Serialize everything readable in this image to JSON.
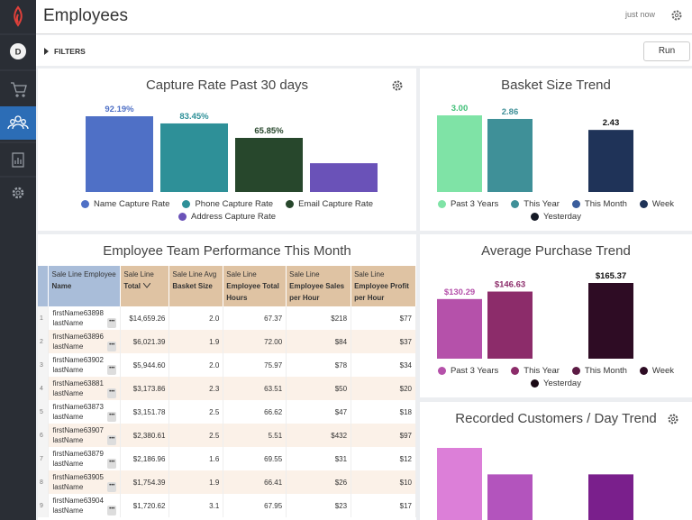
{
  "header": {
    "title": "Employees",
    "status": "just now"
  },
  "sidebar": {
    "avatar": "D"
  },
  "filters": {
    "label": "FILTERS",
    "button": "Run"
  },
  "charts": [
    {
      "type": "bar",
      "title": "Capture Rate Past 30 days",
      "gear": true,
      "categories": [
        "Name Capture Rate",
        "Phone Capture Rate",
        "Email Capture Rate",
        "Address Capture Rate"
      ],
      "values": [
        92.19,
        83.45,
        65.85,
        35
      ],
      "value_labels": [
        "92.19%",
        "83.45%",
        "65.85%",
        null
      ],
      "colors": [
        "#4f70c6",
        "#2e9098",
        "#27472c",
        "#6a52b8"
      ]
    },
    {
      "type": "bar",
      "title": "Basket Size Trend",
      "gear": false,
      "categories": [
        "Past 3 Years",
        "This Year",
        "This Month",
        "Week",
        "Yesterday"
      ],
      "values": [
        3.0,
        2.86,
        null,
        2.43,
        null
      ],
      "value_labels": [
        "3.00",
        "2.86",
        null,
        "2.43",
        null
      ],
      "colors": [
        "#7fe3a6",
        "#3f9098",
        "#3a5d9c",
        "#1f3358",
        "#151a26"
      ]
    },
    {
      "type": "bar",
      "title": "Average Purchase Trend",
      "gear": false,
      "categories": [
        "Past 3 Years",
        "This Year",
        "This Month",
        "Week",
        "Yesterday"
      ],
      "values": [
        130.29,
        146.63,
        null,
        165.37,
        null
      ],
      "value_labels": [
        "$130.29",
        "$146.63",
        null,
        "$165.37",
        null
      ],
      "colors": [
        "#b551aa",
        "#8c2c6a",
        "#5c1b44",
        "#2e0c24",
        "#1a0914"
      ]
    },
    {
      "type": "bar",
      "title": "Recorded Customers / Day Trend",
      "gear": true,
      "values": [
        38,
        26,
        null,
        26,
        null
      ],
      "colors": [
        "#dc7fd8",
        "#b354bd",
        "#8a3a95",
        "#7a1f8c",
        "#3a0f40"
      ]
    }
  ],
  "table": {
    "title": "Employee Team Performance This Month",
    "headers": [
      [
        "Sale Line Employee",
        "Name"
      ],
      [
        "Sale Line",
        "Total"
      ],
      [
        "Sale Line Avg",
        "Basket Size"
      ],
      [
        "Sale Line",
        "Employee Total Hours"
      ],
      [
        "Sale Line",
        "Employee Sales per Hour"
      ],
      [
        "Sale Line",
        "Employee Profit per Hour"
      ]
    ],
    "rows": [
      [
        "1",
        "firstName63898",
        "lastName",
        "$14,659.26",
        "2.0",
        "67.37",
        "$218",
        "$77"
      ],
      [
        "2",
        "firstName63896",
        "lastName",
        "$6,021.39",
        "1.9",
        "72.00",
        "$84",
        "$37"
      ],
      [
        "3",
        "firstName63902",
        "lastName",
        "$5,944.60",
        "2.0",
        "75.97",
        "$78",
        "$34"
      ],
      [
        "4",
        "firstName63881",
        "lastName",
        "$3,173.86",
        "2.3",
        "63.51",
        "$50",
        "$20"
      ],
      [
        "5",
        "firstName63873",
        "lastName",
        "$3,151.78",
        "2.5",
        "66.62",
        "$47",
        "$18"
      ],
      [
        "6",
        "firstName63907",
        "lastName",
        "$2,380.61",
        "2.5",
        "5.51",
        "$432",
        "$97"
      ],
      [
        "7",
        "firstName63879",
        "lastName",
        "$2,186.96",
        "1.6",
        "69.55",
        "$31",
        "$12"
      ],
      [
        "8",
        "firstName63905",
        "lastName",
        "$1,754.39",
        "1.9",
        "66.41",
        "$26",
        "$10"
      ],
      [
        "9",
        "firstName63904",
        "lastName",
        "$1,720.62",
        "3.1",
        "67.95",
        "$23",
        "$17"
      ]
    ]
  }
}
